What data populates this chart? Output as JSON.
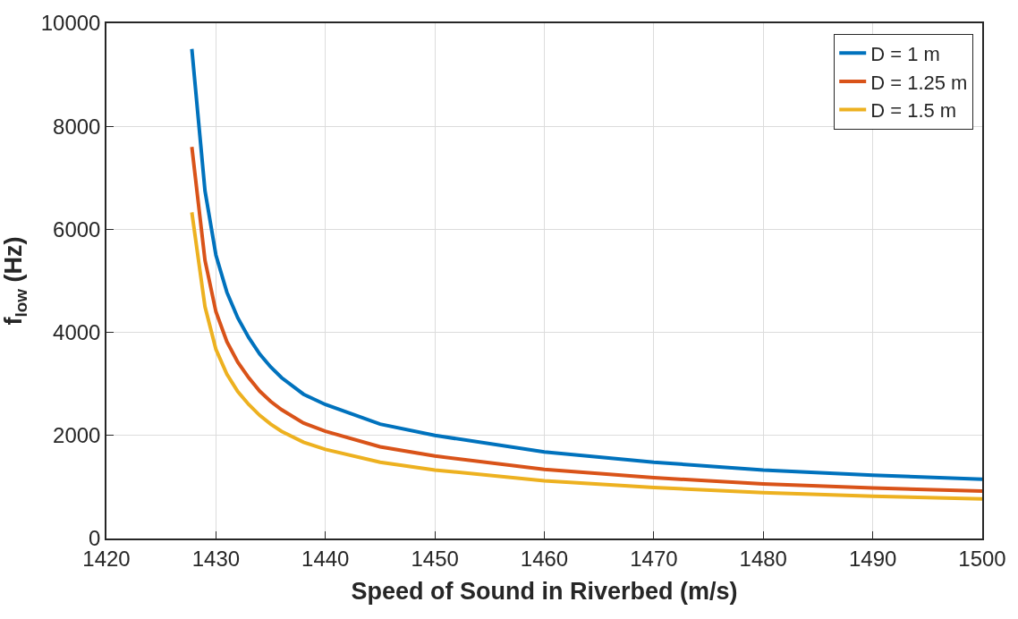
{
  "chart_data": {
    "type": "line",
    "xlabel": "Speed of Sound in Riverbed (m/s)",
    "ylabel": "f$_{low}$ (Hz)",
    "x": [
      1427.8,
      1429,
      1430,
      1431,
      1432,
      1433,
      1434,
      1435,
      1436,
      1438,
      1440,
      1445,
      1450,
      1460,
      1470,
      1480,
      1490,
      1500
    ],
    "series": [
      {
        "name": "D = 1 m",
        "color": "#0072bd",
        "values": [
          9500,
          6750,
          5500,
          4780,
          4280,
          3900,
          3580,
          3330,
          3120,
          2800,
          2600,
          2220,
          2000,
          1680,
          1480,
          1330,
          1230,
          1150
        ]
      },
      {
        "name": "D = 1.25 m",
        "color": "#d95319",
        "values": [
          7600,
          5400,
          4400,
          3820,
          3420,
          3120,
          2860,
          2660,
          2500,
          2240,
          2080,
          1780,
          1600,
          1340,
          1180,
          1060,
          980,
          920
        ]
      },
      {
        "name": "D = 1.5 m",
        "color": "#edb120",
        "values": [
          6330,
          4500,
          3670,
          3190,
          2850,
          2600,
          2390,
          2220,
          2080,
          1870,
          1730,
          1480,
          1330,
          1120,
          990,
          890,
          820,
          770
        ]
      }
    ],
    "xlim": [
      1420,
      1500
    ],
    "xticks": [
      1420,
      1430,
      1440,
      1450,
      1460,
      1470,
      1480,
      1490,
      1500
    ],
    "ylim": [
      0,
      10000
    ],
    "yticks": [
      0,
      2000,
      4000,
      6000,
      8000,
      10000
    ],
    "grid": true,
    "legend": "top right",
    "line_style": "solid",
    "marker": "none"
  }
}
